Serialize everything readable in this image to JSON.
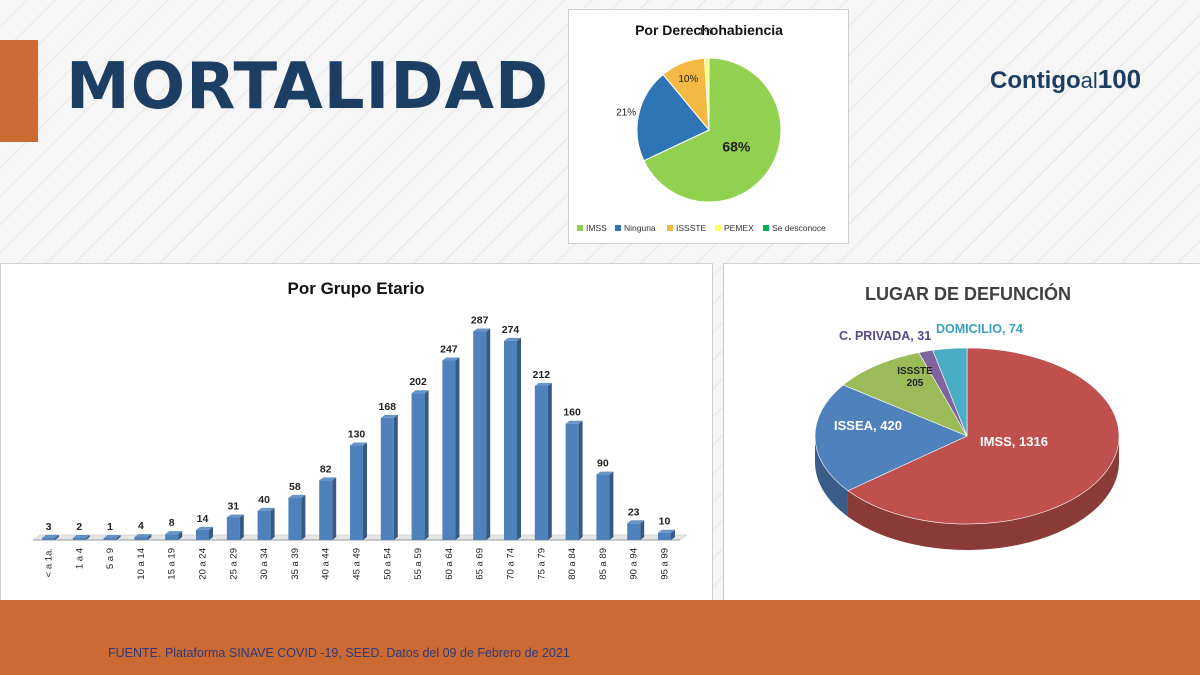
{
  "page": {
    "title": "MORTALIDAD",
    "source": "FUENTE. Plataforma SINAVE COVID -19, SEED. Datos del 09 de Febrero de 2021"
  },
  "logo": {
    "word1": "Contigo",
    "word2": "al",
    "word3": "100"
  },
  "colors": {
    "accent": "#cc6a33",
    "navy": "#1d3e63",
    "bar": "#4f81bd"
  },
  "chart_data": [
    {
      "type": "pie",
      "title": "Por Derechohabiencia",
      "categories": [
        "IMSS",
        "Ninguna",
        "ISSSTE",
        "PEMEX",
        "Se desconoce"
      ],
      "values": [
        68,
        21,
        10,
        1,
        0
      ],
      "labels": [
        "68%",
        "21%",
        "10%",
        "1%",
        ""
      ],
      "colors": [
        "#92d050",
        "#2e75b6",
        "#f4b942",
        "#ffff66",
        "#00b050"
      ],
      "legend": "bottom"
    },
    {
      "type": "bar",
      "title": "Por Grupo Etario",
      "categories": [
        "< a 1a.",
        "1 a 4",
        "5 a 9",
        "10 a 14",
        "15 a 19",
        "20 a 24",
        "25 a 29",
        "30 a 34",
        "35 a 39",
        "40 a 44",
        "45 a 49",
        "50 a 54",
        "55 a 59",
        "60 a 64",
        "65 a 69",
        "70 a 74",
        "75 a 79",
        "80 a 84",
        "85 a 89",
        "90 a 94",
        "95 a 99"
      ],
      "values": [
        3,
        2,
        1,
        4,
        8,
        14,
        31,
        40,
        58,
        82,
        130,
        168,
        202,
        247,
        287,
        274,
        212,
        160,
        90,
        23,
        10
      ],
      "ylim": [
        0,
        300
      ],
      "grid": false
    },
    {
      "type": "pie",
      "title": "LUGAR DE DEFUNCIÓN",
      "categories": [
        "IMSS",
        "ISSEA",
        "ISSSTE",
        "C. PRIVADA",
        "DOMICILIO"
      ],
      "values": [
        1316,
        420,
        205,
        31,
        74
      ],
      "labels": [
        "IMSS, 1316",
        "ISSEA, 420",
        "ISSSTE 205",
        "C. PRIVADA, 31",
        "DOMICILIO, 74"
      ],
      "colors": [
        "#c0504d",
        "#4f81bd",
        "#9bbb59",
        "#8064a2",
        "#4bacc6"
      ]
    }
  ]
}
